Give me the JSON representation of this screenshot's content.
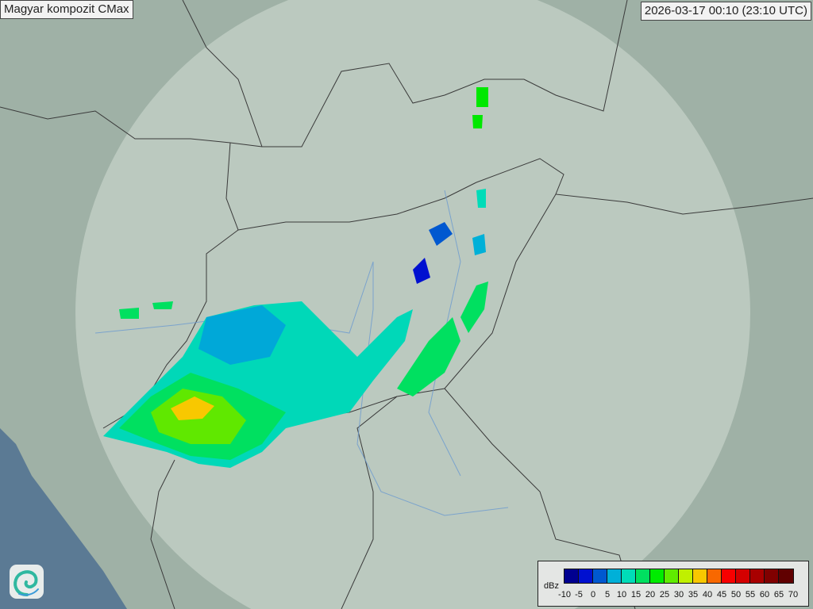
{
  "header": {
    "title": "Magyar kompozit  CMax",
    "timestamp": "2026-03-17 00:10 (23:10 UTC)"
  },
  "legend": {
    "unit": "dBz",
    "ticks": [
      "-10",
      "-5",
      "0",
      "5",
      "10",
      "15",
      "20",
      "25",
      "30",
      "35",
      "40",
      "45",
      "50",
      "55",
      "60",
      "65",
      "70"
    ],
    "colors": [
      "#000090",
      "#0010d0",
      "#0058d0",
      "#00b0d8",
      "#00dcb8",
      "#00e060",
      "#00ec00",
      "#60ec00",
      "#c0f000",
      "#f8c800",
      "#f86800",
      "#f80000",
      "#d40000",
      "#a80000",
      "#800000",
      "#600000"
    ]
  },
  "map": {
    "colors": {
      "land": "#9fb1a6",
      "coverage": "#c9d4cc",
      "sea": "#5b7a94",
      "border": "#3a3a3a",
      "river": "#6b9ad0"
    }
  },
  "logo": {
    "icon": "spiral-logo-icon"
  }
}
